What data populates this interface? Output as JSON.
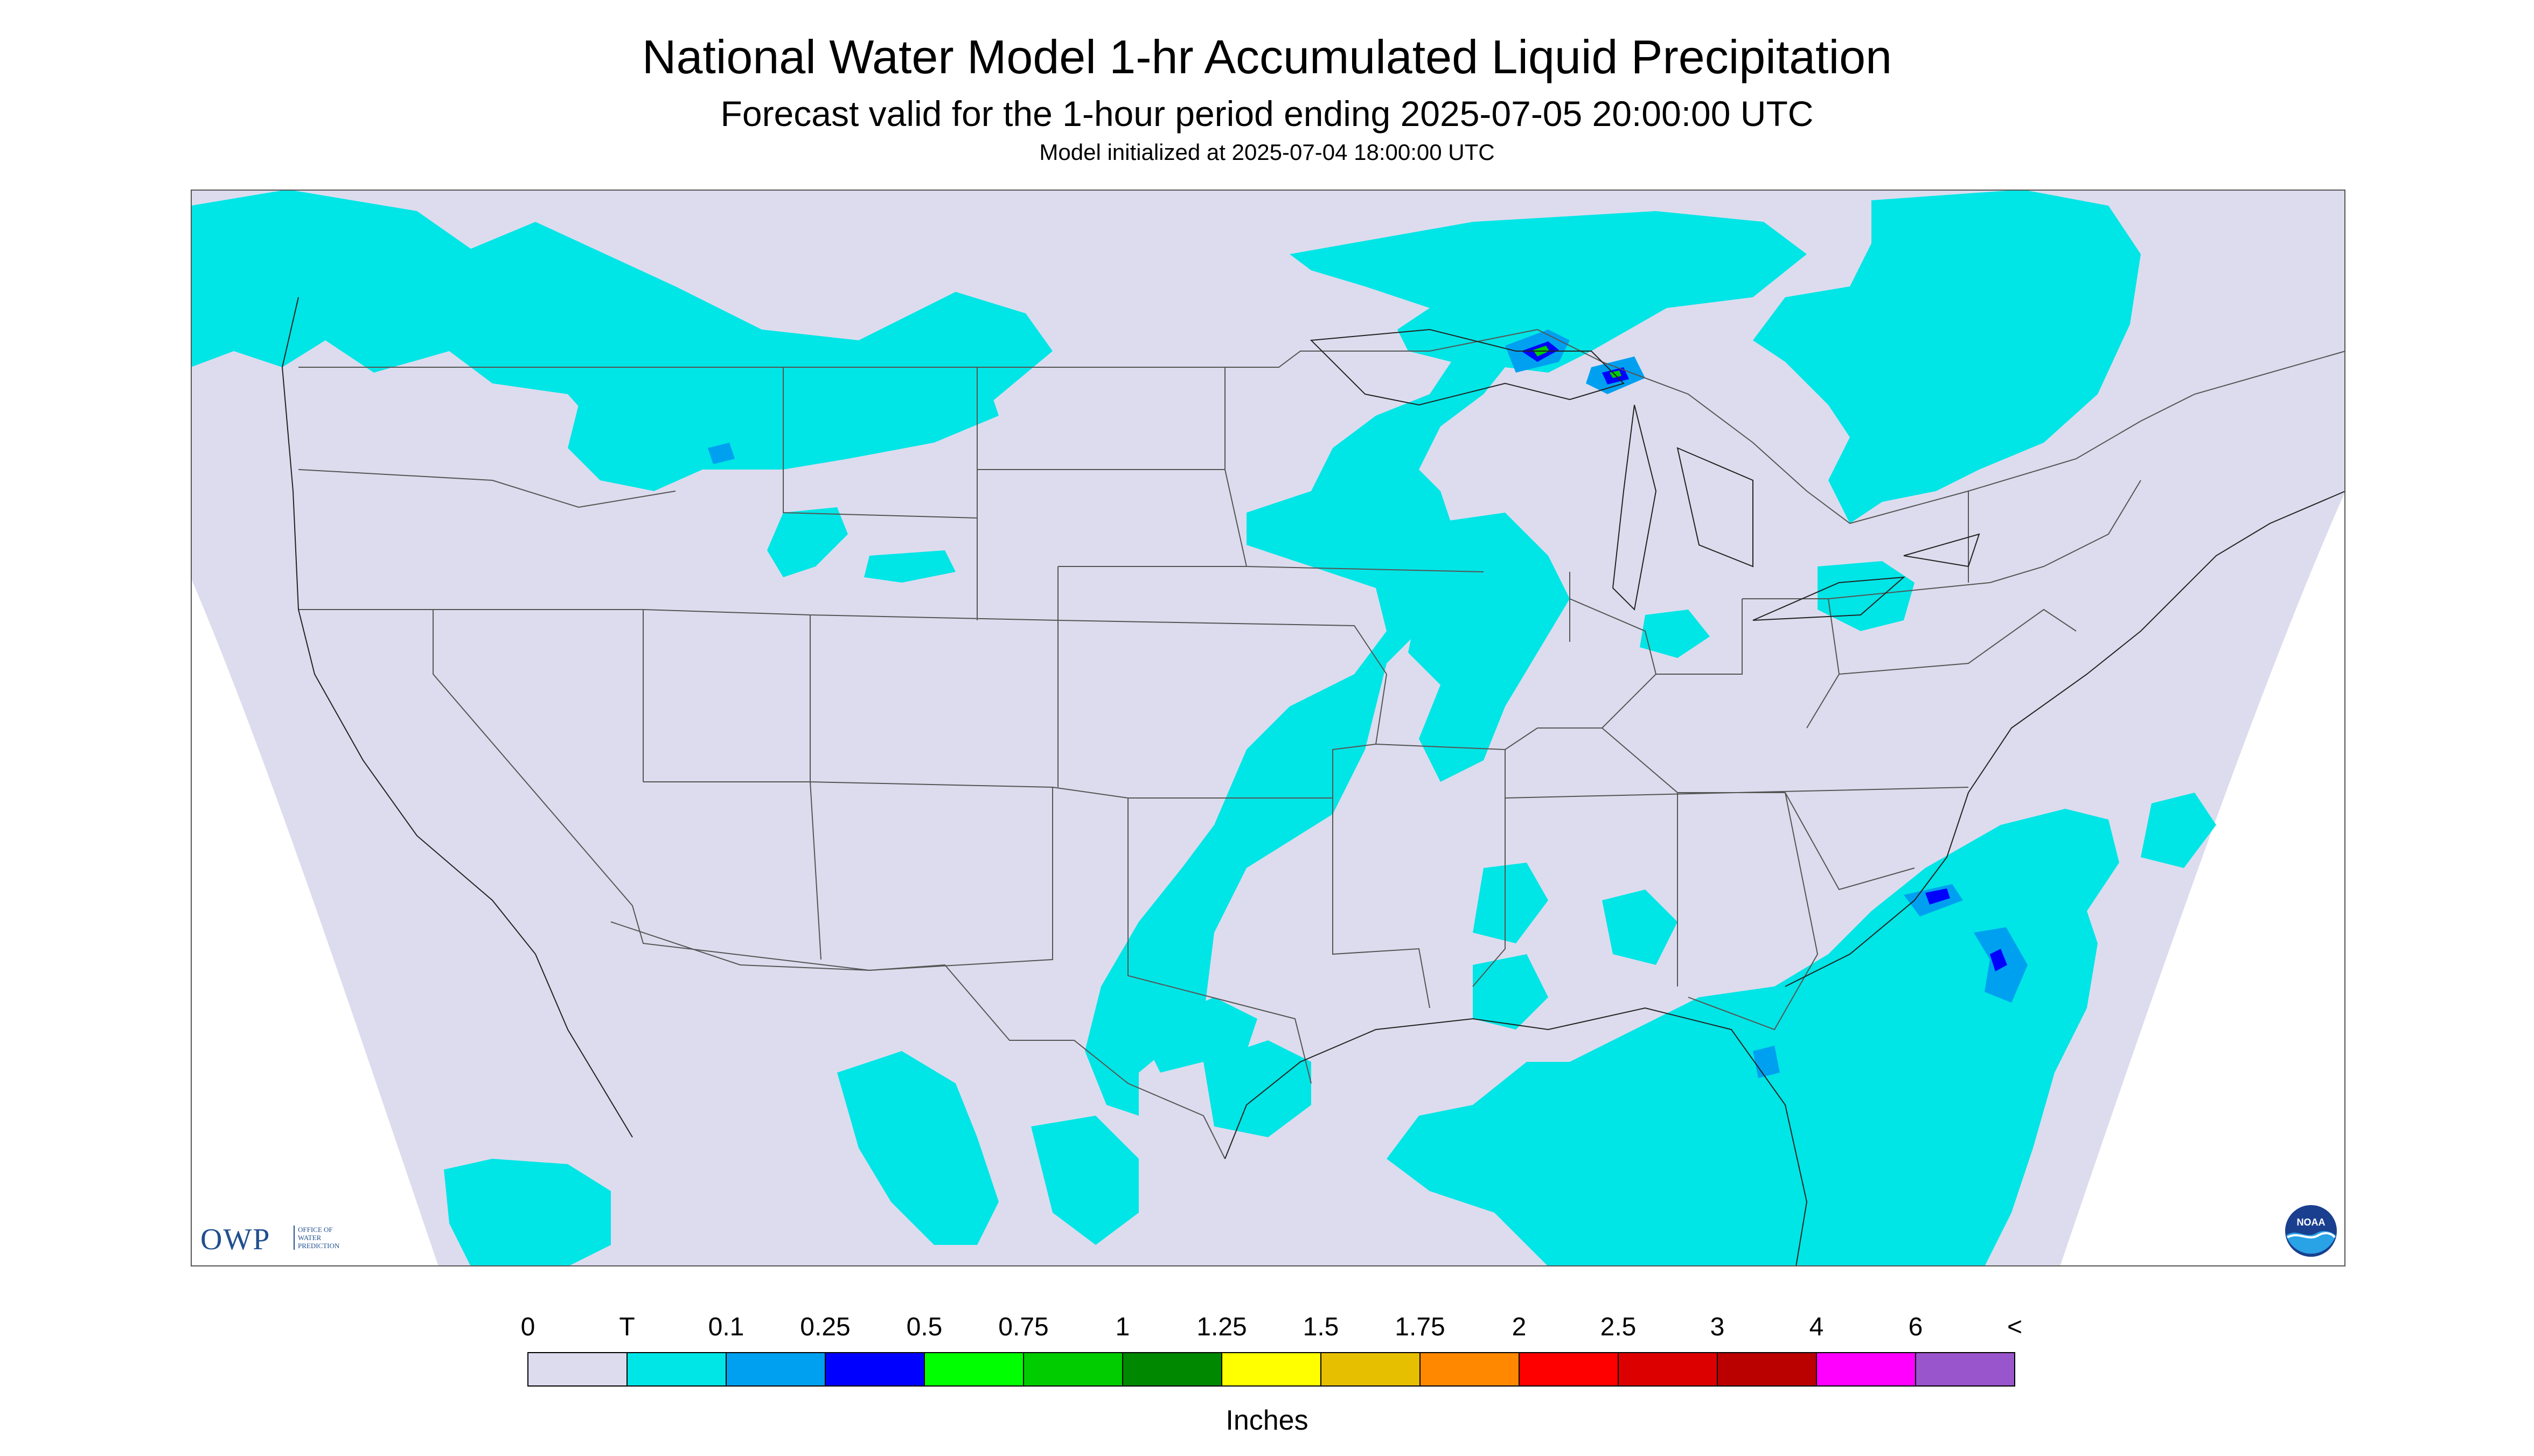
{
  "title": "National Water Model 1-hr Accumulated Liquid Precipitation",
  "subtitle": "Forecast valid for the 1-hour period ending 2025-07-05 20:00:00 UTC",
  "init": "Model initialized at 2025-07-04 18:00:00 UTC",
  "logos": {
    "owp_abbrev": "OWP",
    "owp_full_lines": [
      "OFFICE OF",
      "WATER",
      "PREDICTION"
    ],
    "noaa": "NOAA"
  },
  "legend": {
    "units": "Inches",
    "labels": [
      "0",
      "T",
      "0.1",
      "0.25",
      "0.5",
      "0.75",
      "1",
      "1.25",
      "1.5",
      "1.75",
      "2",
      "2.5",
      "3",
      "4",
      "6",
      "<"
    ],
    "colors": [
      "#dcdcee",
      "#00e5e5",
      "#00a0f0",
      "#0000ff",
      "#00ff00",
      "#00cc00",
      "#008800",
      "#ffff00",
      "#e6bf00",
      "#ff8800",
      "#ff0000",
      "#dd0000",
      "#bb0000",
      "#ff00ff",
      "#9955cc"
    ]
  },
  "map": {
    "background_color": "#dcdcee",
    "precip_light_color": "#00e5e5",
    "precip_moderate_color": "#00a0f0",
    "precip_heavy_color": "#0000ff",
    "precip_green_color": "#00cc00"
  }
}
